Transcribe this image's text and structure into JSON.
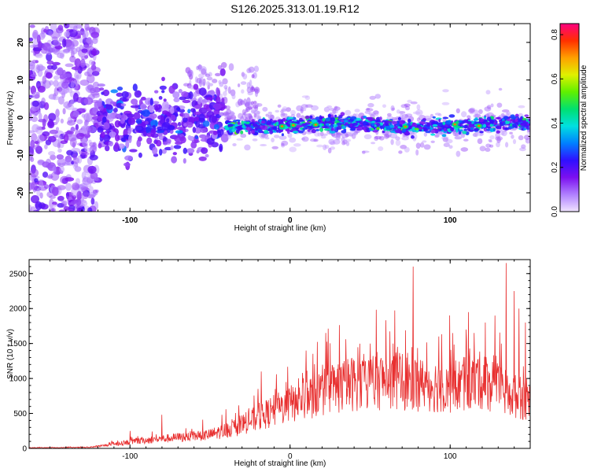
{
  "title": "S126.2025.313.01.19.R12",
  "chart_data": [
    {
      "type": "heatmap",
      "name": "spectrogram",
      "xlabel": "Height of straight line (km)",
      "ylabel": "Frequency (Hz)",
      "xlim": [
        -163,
        150
      ],
      "ylim": [
        -25,
        25
      ],
      "xticks": [
        -100,
        0,
        100
      ],
      "yticks": [
        -20,
        -10,
        0,
        10,
        20
      ],
      "colorbar": {
        "label": "Normalized spectral amplitude",
        "range": [
          0.0,
          0.85
        ],
        "ticks": [
          "0.0",
          "0.2",
          "0.4",
          "0.6",
          "0.8"
        ],
        "colors": [
          "#f0e4ff",
          "#b080ff",
          "#7c10f0",
          "#3010ff",
          "#0080ff",
          "#00e0e0",
          "#00e070",
          "#60f000",
          "#e0f000",
          "#ffa000",
          "#ff3000",
          "#ff0080"
        ]
      },
      "features": {
        "main_band": {
          "x_range": [
            -115,
            150
          ],
          "freq_center": -2,
          "freq_width": 3
        },
        "noise_region": {
          "x_range": [
            -163,
            -120
          ],
          "freq_range": [
            -25,
            25
          ]
        },
        "peak_points": [
          [
            -5,
            -2.3
          ],
          [
            2,
            -2
          ],
          [
            16,
            -1.9
          ],
          [
            72,
            -2.4
          ],
          [
            103,
            -1.8
          ],
          [
            118,
            -2.2
          ]
        ]
      }
    },
    {
      "type": "line",
      "name": "snr",
      "xlabel": "Height of straight line (km)",
      "ylabel": "SNR (10 * v/v)",
      "xlim": [
        -163,
        150
      ],
      "ylim": [
        0,
        2700
      ],
      "xticks": [
        -100,
        0,
        100
      ],
      "yticks": [
        0,
        500,
        1000,
        1500,
        2000,
        2500
      ],
      "color": "#e83030",
      "envelope": {
        "x": [
          -163,
          -125,
          -110,
          -90,
          -70,
          -50,
          -35,
          -20,
          0,
          20,
          40,
          60,
          80,
          100,
          120,
          135,
          150
        ],
        "y": [
          10,
          15,
          60,
          120,
          160,
          200,
          300,
          450,
          650,
          820,
          960,
          1000,
          950,
          900,
          1000,
          800,
          700
        ]
      },
      "spikes": [
        [
          -100,
          250
        ],
        [
          -80,
          480
        ],
        [
          -40,
          560
        ],
        [
          -20,
          850
        ],
        [
          -18,
          1100
        ],
        [
          10,
          1400
        ],
        [
          30,
          1200
        ],
        [
          50,
          1500
        ],
        [
          70,
          1350
        ],
        [
          77,
          2600
        ],
        [
          93,
          1600
        ],
        [
          110,
          1700
        ],
        [
          115,
          1650
        ],
        [
          122,
          1800
        ],
        [
          128,
          1900
        ],
        [
          132,
          1500
        ],
        [
          135,
          2650
        ],
        [
          140,
          2250
        ],
        [
          143,
          2000
        ],
        [
          147,
          1800
        ]
      ]
    }
  ]
}
